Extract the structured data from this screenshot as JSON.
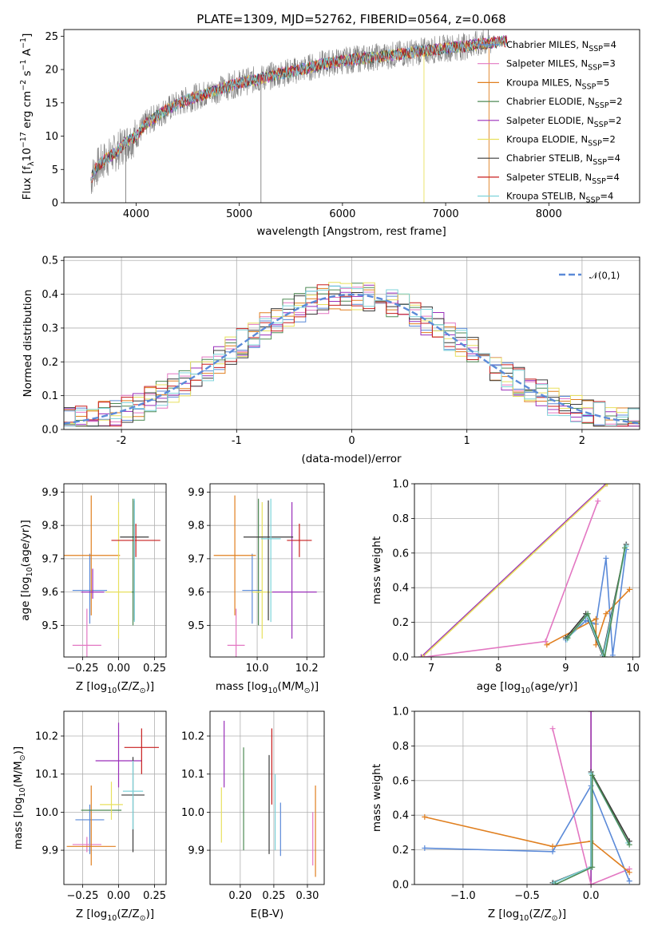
{
  "title": "PLATE=1309, MJD=52762, FIBERID=0564, z=0.068",
  "colors": {
    "Chabrier MILES": "#5b8ad8",
    "Salpeter MILES": "#e377c2",
    "Kroupa MILES": "#e07f1f",
    "Chabrier ELODIE": "#4e8a55",
    "Salpeter ELODIE": "#9a2fba",
    "Kroupa ELODIE": "#e8e05e",
    "Chabrier STELIB": "#3a3a3a",
    "Salpeter STELIB": "#c81e1e",
    "Kroupa STELIB": "#7dd3da",
    "data": "#7f7f7f"
  },
  "chart_data": [
    {
      "type": "line",
      "xlabel": "wavelength [Angstrom, rest frame]",
      "ylabel": "Flux [f",
      "ylabel_parts": [
        "Flux [f",
        "λ",
        "10",
        "−17",
        " erg cm",
        "−2",
        " s",
        "−1",
        " A",
        "−1",
        "]"
      ],
      "xlim": [
        3300,
        8880
      ],
      "ylim": [
        0,
        26
      ],
      "xticks": [
        4000,
        5000,
        6000,
        7000,
        8000
      ],
      "yticks": [
        0,
        5,
        10,
        15,
        20,
        25
      ],
      "grid": false,
      "legend": [
        {
          "name": "Chabrier MILES",
          "nssp": "4"
        },
        {
          "name": "Salpeter MILES",
          "nssp": "3"
        },
        {
          "name": "Kroupa MILES",
          "nssp": "5"
        },
        {
          "name": "Chabrier ELODIE",
          "nssp": "2"
        },
        {
          "name": "Salpeter ELODIE",
          "nssp": "2"
        },
        {
          "name": "Kroupa ELODIE",
          "nssp": "2"
        },
        {
          "name": "Chabrier STELIB",
          "nssp": "4"
        },
        {
          "name": "Salpeter STELIB",
          "nssp": "4"
        },
        {
          "name": "Kroupa STELIB",
          "nssp": "4"
        }
      ],
      "legend_sub": "SSP",
      "legend_prefix": "N",
      "legend_position": "right",
      "continuum": {
        "x": [
          3550,
          3600,
          3700,
          3800,
          3900,
          4000,
          4100,
          4200,
          4300,
          4400,
          4500,
          4600,
          4800,
          5000,
          5200,
          5400,
          5600,
          5800,
          6000,
          6200,
          6400,
          6600,
          6800,
          7000,
          7200,
          7400,
          7600
        ],
        "y": [
          3,
          5,
          6.5,
          7.5,
          9,
          10,
          12,
          13,
          14,
          14.8,
          15.5,
          16,
          17,
          18,
          18.6,
          19.4,
          20,
          20.8,
          21.3,
          21.7,
          22,
          22.4,
          22.8,
          23.2,
          23.5,
          24,
          24.3
        ]
      }
    },
    {
      "type": "bar",
      "xlabel": "(data-model)/error",
      "ylabel": "Normed distribution",
      "xlim": [
        -2.5,
        2.5
      ],
      "ylim": [
        0,
        0.51
      ],
      "xticks": [
        -2,
        -1,
        0,
        1,
        2
      ],
      "yticks": [
        0.0,
        0.1,
        0.2,
        0.3,
        0.4,
        0.5
      ],
      "grid": true,
      "legend": [
        "𝒩(0,1)"
      ],
      "legend_position": "top-right",
      "bin_width": 0.1,
      "gaussian": {
        "mean": 0,
        "sigma": 1
      }
    },
    {
      "type": "scatter",
      "xlabel": "Z [log",
      "xlabel_parts": [
        "Z [log",
        "10",
        "(Z/Z",
        "⊙",
        ")]"
      ],
      "ylabel_parts": [
        "age  [log",
        "10",
        "(age/yr)]"
      ],
      "xlim": [
        -0.38,
        0.33
      ],
      "ylim": [
        9.405,
        9.925
      ],
      "xticks": [
        -0.25,
        0.0,
        0.25
      ],
      "xticklabels": [
        "−0.25",
        "0.00",
        "0.25"
      ],
      "yticks": [
        9.5,
        9.6,
        9.7,
        9.8,
        9.9
      ],
      "grid": true,
      "points": [
        {
          "series": "Chabrier MILES",
          "x": -0.2,
          "y": 9.605,
          "xerr": 0.12,
          "yerr": [
            0.1,
            0.11
          ]
        },
        {
          "series": "Salpeter MILES",
          "x": -0.22,
          "y": 9.44,
          "xerr": 0.1,
          "yerr": [
            0.05,
            0.11
          ]
        },
        {
          "series": "Kroupa MILES",
          "x": -0.19,
          "y": 9.71,
          "xerr": 0.2,
          "yerr": [
            0.18,
            0.18
          ]
        },
        {
          "series": "Chabrier ELODIE",
          "x": 0.1,
          "y": 9.6,
          "xerr": 0.01,
          "yerr": [
            0.1,
            0.28
          ]
        },
        {
          "series": "Salpeter ELODIE",
          "x": -0.18,
          "y": 9.6,
          "xerr": 0.08,
          "yerr": [
            0.02,
            0.07
          ]
        },
        {
          "series": "Kroupa ELODIE",
          "x": 0.0,
          "y": 9.6,
          "xerr": 0.09,
          "yerr": [
            0.14,
            0.27
          ]
        },
        {
          "series": "Chabrier STELIB",
          "x": 0.11,
          "y": 9.765,
          "xerr": 0.1,
          "yerr": [
            0.25,
            0.11
          ]
        },
        {
          "series": "Salpeter STELIB",
          "x": 0.12,
          "y": 9.755,
          "xerr": 0.17,
          "yerr": [
            0.05,
            0.05
          ]
        },
        {
          "series": "Kroupa STELIB",
          "x": 0.11,
          "y": 9.76,
          "xerr": 0.0,
          "yerr": [
            0.25,
            0.12
          ]
        }
      ]
    },
    {
      "type": "scatter",
      "xlabel_parts": [
        "mass [log",
        "10",
        "(M/M",
        "⊙",
        ")]"
      ],
      "xlim": [
        9.81,
        10.27
      ],
      "ylim": [
        9.405,
        9.925
      ],
      "xticks": [
        10.0,
        10.2
      ],
      "xticklabels": [
        "10.0",
        "10.2"
      ],
      "yticks": [
        9.5,
        9.6,
        9.7,
        9.8,
        9.9
      ],
      "grid": true,
      "points": [
        {
          "series": "Chabrier MILES",
          "x": 9.98,
          "y": 9.605,
          "xerr": 0.04,
          "yerr": [
            0.1,
            0.11
          ]
        },
        {
          "series": "Salpeter MILES",
          "x": 9.915,
          "y": 9.44,
          "xerr": 0.035,
          "yerr": [
            0.05,
            0.11
          ]
        },
        {
          "series": "Kroupa MILES",
          "x": 9.91,
          "y": 9.71,
          "xerr": 0.085,
          "yerr": [
            0.18,
            0.18
          ]
        },
        {
          "series": "Chabrier ELODIE",
          "x": 10.005,
          "y": 9.6,
          "xerr": 0.01,
          "yerr": [
            0.1,
            0.28
          ]
        },
        {
          "series": "Salpeter ELODIE",
          "x": 10.14,
          "y": 9.6,
          "xerr": 0.1,
          "yerr": [
            0.14,
            0.27
          ]
        },
        {
          "series": "Kroupa ELODIE",
          "x": 10.02,
          "y": 9.6,
          "xerr": 0.04,
          "yerr": [
            0.14,
            0.27
          ]
        },
        {
          "series": "Chabrier STELIB",
          "x": 10.045,
          "y": 9.765,
          "xerr": 0.1,
          "yerr": [
            0.25,
            0.11
          ]
        },
        {
          "series": "Salpeter STELIB",
          "x": 10.17,
          "y": 9.755,
          "xerr": 0.05,
          "yerr": [
            0.05,
            0.05
          ]
        },
        {
          "series": "Kroupa STELIB",
          "x": 10.055,
          "y": 9.76,
          "xerr": 0.04,
          "yerr": [
            0.25,
            0.12
          ]
        }
      ]
    },
    {
      "type": "line",
      "xlabel_parts": [
        "age  [log",
        "10",
        "(age/yr)]"
      ],
      "ylabel": "mass weight",
      "xlim": [
        6.75,
        10.1
      ],
      "ylim": [
        0,
        1
      ],
      "xticks": [
        7,
        8,
        9,
        10
      ],
      "yticks": [
        0.0,
        0.2,
        0.4,
        0.6,
        0.8,
        1.0
      ],
      "grid": true,
      "series": [
        {
          "name": "Salpeter ELODIE",
          "x": [
            6.85,
            9.6
          ],
          "y": [
            0.0,
            1.0
          ]
        },
        {
          "name": "Kroupa ELODIE",
          "x": [
            6.87,
            9.62
          ],
          "y": [
            0.0,
            1.0
          ]
        },
        {
          "name": "Salpeter MILES",
          "x": [
            6.9,
            8.7,
            9.48
          ],
          "y": [
            0.0,
            0.09,
            0.9
          ]
        },
        {
          "name": "Chabrier MILES",
          "x": [
            9.0,
            9.3,
            9.45,
            9.6,
            9.7,
            9.9
          ],
          "y": [
            0.1,
            0.21,
            0.19,
            0.57,
            0.01,
            0.62
          ]
        },
        {
          "name": "Kroupa MILES",
          "x": [
            8.72,
            9.45,
            9.45,
            9.6,
            9.95
          ],
          "y": [
            0.07,
            0.22,
            0.07,
            0.25,
            0.39
          ]
        },
        {
          "name": "Chabrier STELIB",
          "x": [
            9.0,
            9.3,
            9.55,
            9.9
          ],
          "y": [
            0.11,
            0.25,
            0.01,
            0.65
          ]
        },
        {
          "name": "Kroupa STELIB",
          "x": [
            9.02,
            9.32,
            9.56,
            9.9
          ],
          "y": [
            0.1,
            0.24,
            0.01,
            0.64
          ]
        },
        {
          "name": "Chabrier ELODIE",
          "x": [
            9.03,
            9.33,
            9.58,
            9.88
          ],
          "y": [
            0.11,
            0.25,
            0.0,
            0.63
          ]
        }
      ]
    },
    {
      "type": "scatter",
      "xlabel_parts": [
        "Z [log",
        "10",
        "(Z/Z",
        "⊙",
        ")]"
      ],
      "ylabel_parts": [
        "mass [log",
        "10",
        "(M/M",
        "⊙",
        ")]"
      ],
      "xlim": [
        -0.38,
        0.33
      ],
      "ylim": [
        9.81,
        10.265
      ],
      "xticks": [
        -0.25,
        0.0,
        0.25
      ],
      "xticklabels": [
        "−0.25",
        "0.00",
        "0.25"
      ],
      "yticks": [
        9.9,
        10.0,
        10.1,
        10.2
      ],
      "grid": true,
      "points": [
        {
          "series": "Chabrier MILES",
          "x": -0.2,
          "y": 9.98,
          "xerr": 0.1,
          "yerr": [
            0.09,
            0.04
          ]
        },
        {
          "series": "Salpeter MILES",
          "x": -0.22,
          "y": 9.915,
          "xerr": 0.1,
          "yerr": [
            0.02,
            0.02
          ]
        },
        {
          "series": "Kroupa MILES",
          "x": -0.19,
          "y": 9.91,
          "xerr": 0.17,
          "yerr": [
            0.05,
            0.16
          ]
        },
        {
          "series": "Chabrier ELODIE",
          "x": -0.12,
          "y": 10.005,
          "xerr": 0.14,
          "yerr": [
            0.0,
            0.0
          ]
        },
        {
          "series": "Salpeter ELODIE",
          "x": 0.0,
          "y": 10.135,
          "xerr": 0.16,
          "yerr": [
            0.07,
            0.1
          ]
        },
        {
          "series": "Kroupa ELODIE",
          "x": -0.05,
          "y": 10.02,
          "xerr": 0.08,
          "yerr": [
            0.04,
            0.06
          ]
        },
        {
          "series": "Chabrier STELIB",
          "x": 0.1,
          "y": 10.045,
          "xerr": 0.08,
          "yerr": [
            0.15,
            0.1
          ]
        },
        {
          "series": "Salpeter STELIB",
          "x": 0.16,
          "y": 10.17,
          "xerr": 0.12,
          "yerr": [
            0.07,
            0.05
          ]
        },
        {
          "series": "Kroupa STELIB",
          "x": 0.1,
          "y": 10.055,
          "xerr": 0.07,
          "yerr": [
            0.1,
            0.08
          ]
        }
      ]
    },
    {
      "type": "scatter",
      "xlabel": "E(B-V)",
      "xlim": [
        0.155,
        0.325
      ],
      "ylim": [
        9.81,
        10.265
      ],
      "xticks": [
        0.2,
        0.25,
        0.3
      ],
      "xticklabels": [
        "0.20",
        "0.25",
        "0.30"
      ],
      "yticks": [
        9.9,
        10.0,
        10.1,
        10.2
      ],
      "grid": true,
      "points": [
        {
          "series": "Kroupa ELODIE",
          "x": 0.172,
          "y": 9.99,
          "yerr": [
            0.07,
            0.075
          ]
        },
        {
          "series": "Salpeter ELODIE",
          "x": 0.176,
          "y": 10.135,
          "yerr": [
            0.07,
            0.105
          ]
        },
        {
          "series": "Chabrier ELODIE",
          "x": 0.205,
          "y": 10.035,
          "yerr": [
            0.135,
            0.135
          ]
        },
        {
          "series": "Chabrier STELIB",
          "x": 0.243,
          "y": 10.02,
          "yerr": [
            0.13,
            0.13
          ]
        },
        {
          "series": "Salpeter STELIB",
          "x": 0.247,
          "y": 10.12,
          "yerr": [
            0.1,
            0.1
          ]
        },
        {
          "series": "Kroupa STELIB",
          "x": 0.252,
          "y": 10.0,
          "yerr": [
            0.1,
            0.1
          ]
        },
        {
          "series": "Chabrier MILES",
          "x": 0.26,
          "y": 9.955,
          "yerr": [
            0.07,
            0.07
          ]
        },
        {
          "series": "Salpeter MILES",
          "x": 0.308,
          "y": 9.93,
          "yerr": [
            0.07,
            0.07
          ]
        },
        {
          "series": "Kroupa MILES",
          "x": 0.312,
          "y": 9.95,
          "yerr": [
            0.12,
            0.12
          ]
        }
      ]
    },
    {
      "type": "line",
      "xlabel_parts": [
        "Z [log",
        "10",
        "(Z/Z",
        "⊙",
        ")]"
      ],
      "ylabel": "mass weight",
      "xlim": [
        -1.38,
        0.38
      ],
      "ylim": [
        0,
        1
      ],
      "xticks": [
        -1.0,
        -0.5,
        0.0
      ],
      "xticklabels": [
        "−1.0",
        "−0.5",
        "0.0"
      ],
      "yticks": [
        0.0,
        0.2,
        0.4,
        0.6,
        0.8,
        1.0
      ],
      "grid": true,
      "series": [
        {
          "name": "Kroupa ELODIE",
          "x": [
            0.0,
            0.0
          ],
          "y": [
            0.0,
            1.0
          ]
        },
        {
          "name": "Salpeter ELODIE",
          "x": [
            0.0,
            0.0
          ],
          "y": [
            0.0,
            1.0
          ]
        },
        {
          "name": "Salpeter MILES",
          "x": [
            -0.3,
            0.0,
            0.3
          ],
          "y": [
            0.9,
            0.0,
            0.09
          ]
        },
        {
          "name": "Chabrier MILES",
          "x": [
            -1.3,
            -0.3,
            0.0,
            0.3
          ],
          "y": [
            0.21,
            0.19,
            0.57,
            0.02
          ]
        },
        {
          "name": "Kroupa MILES",
          "x": [
            -1.3,
            -0.3,
            0.0,
            0.3
          ],
          "y": [
            0.39,
            0.22,
            0.25,
            0.07
          ]
        },
        {
          "name": "Chabrier STELIB",
          "x": [
            -0.3,
            0.0,
            0.0,
            0.3
          ],
          "y": [
            0.01,
            0.1,
            0.65,
            0.25
          ]
        },
        {
          "name": "Kroupa STELIB",
          "x": [
            -0.29,
            0.0,
            0.0,
            0.29
          ],
          "y": [
            0.01,
            0.1,
            0.64,
            0.24
          ]
        },
        {
          "name": "Chabrier ELODIE",
          "x": [
            -0.28,
            0.01,
            0.01,
            0.3
          ],
          "y": [
            0.0,
            0.1,
            0.63,
            0.23
          ]
        }
      ]
    }
  ]
}
